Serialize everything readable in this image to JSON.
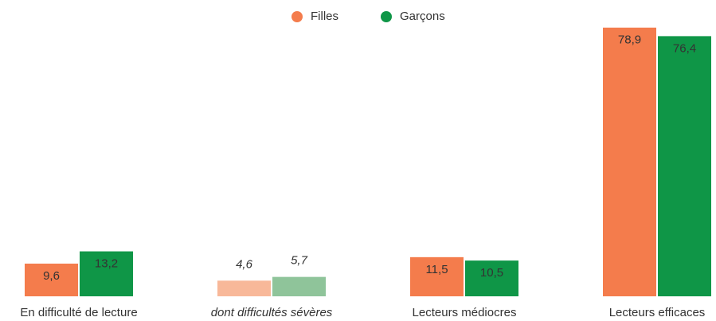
{
  "chart_data": {
    "type": "bar",
    "categories": [
      "En difficulté de lecture",
      "dont difficultés sévères",
      "Lecteurs médiocres",
      "Lecteurs efficaces"
    ],
    "category_styles": [
      "normal",
      "italic",
      "normal",
      "normal"
    ],
    "series": [
      {
        "name": "Filles",
        "color": "#f47c4c",
        "colors": [
          "#f47c4c",
          "#f8b899",
          "#f47c4c",
          "#f47c4c"
        ],
        "values": [
          9.6,
          4.6,
          11.5,
          78.9
        ],
        "value_labels": [
          "9,6",
          "4,6",
          "11,5",
          "78,9"
        ]
      },
      {
        "name": "Garçons",
        "color": "#0f9647",
        "colors": [
          "#0f9647",
          "#8fc49a",
          "#0f9647",
          "#0f9647"
        ],
        "values": [
          13.2,
          5.7,
          10.5,
          76.4
        ],
        "value_labels": [
          "13,2",
          "5,7",
          "10,5",
          "76,4"
        ]
      }
    ],
    "ylim": [
      0,
      80
    ],
    "legend": "top"
  }
}
